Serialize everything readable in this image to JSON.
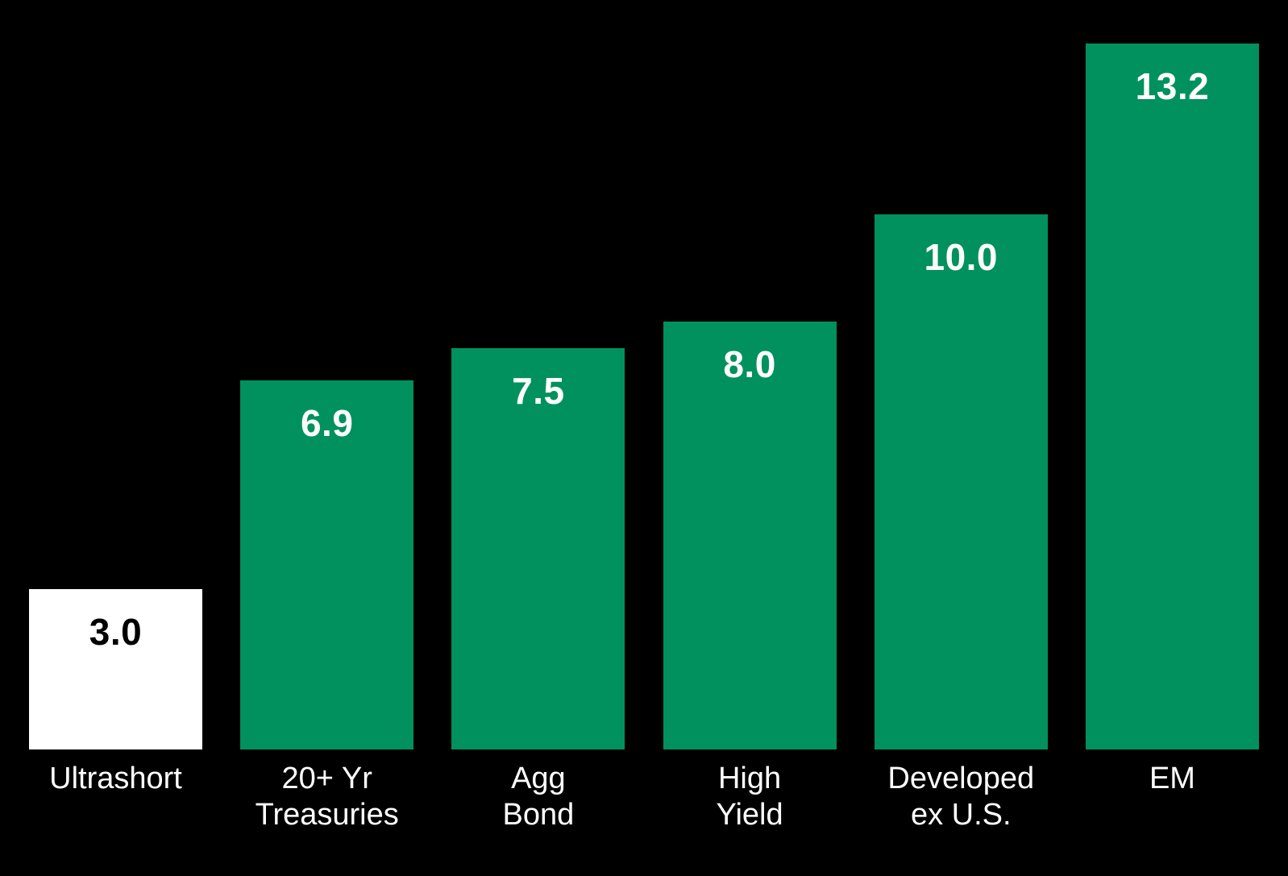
{
  "chart_data": {
    "type": "bar",
    "title": "",
    "xlabel": "",
    "ylabel": "",
    "categories": [
      "Ultrashort",
      "20+ Yr Treasuries",
      "Agg Bond",
      "High Yield",
      "Developed ex U.S.",
      "EM"
    ],
    "category_lines": [
      [
        "Ultrashort"
      ],
      [
        "20+ Yr",
        "Treasuries"
      ],
      [
        "Agg",
        "Bond"
      ],
      [
        "High",
        "Yield"
      ],
      [
        "Developed",
        "ex U.S."
      ],
      [
        "EM"
      ]
    ],
    "values": [
      3.0,
      6.9,
      7.5,
      8.0,
      10.0,
      13.2
    ],
    "value_labels": [
      "3.0",
      "6.9",
      "7.5",
      "8.0",
      "10.0",
      "13.2"
    ],
    "bar_colors": [
      "#ffffff",
      "#00915e",
      "#00915e",
      "#00915e",
      "#00915e",
      "#00915e"
    ],
    "value_label_colors": [
      "#000000",
      "#ffffff",
      "#ffffff",
      "#ffffff",
      "#ffffff",
      "#ffffff"
    ],
    "ylim": [
      0,
      14
    ],
    "grid": false,
    "legend": false,
    "axes_visible": false,
    "background": "#000000",
    "colors": {
      "background": "#000000",
      "bar_green": "#00915e",
      "bar_white": "#ffffff",
      "category_text": "#ffffff"
    }
  }
}
